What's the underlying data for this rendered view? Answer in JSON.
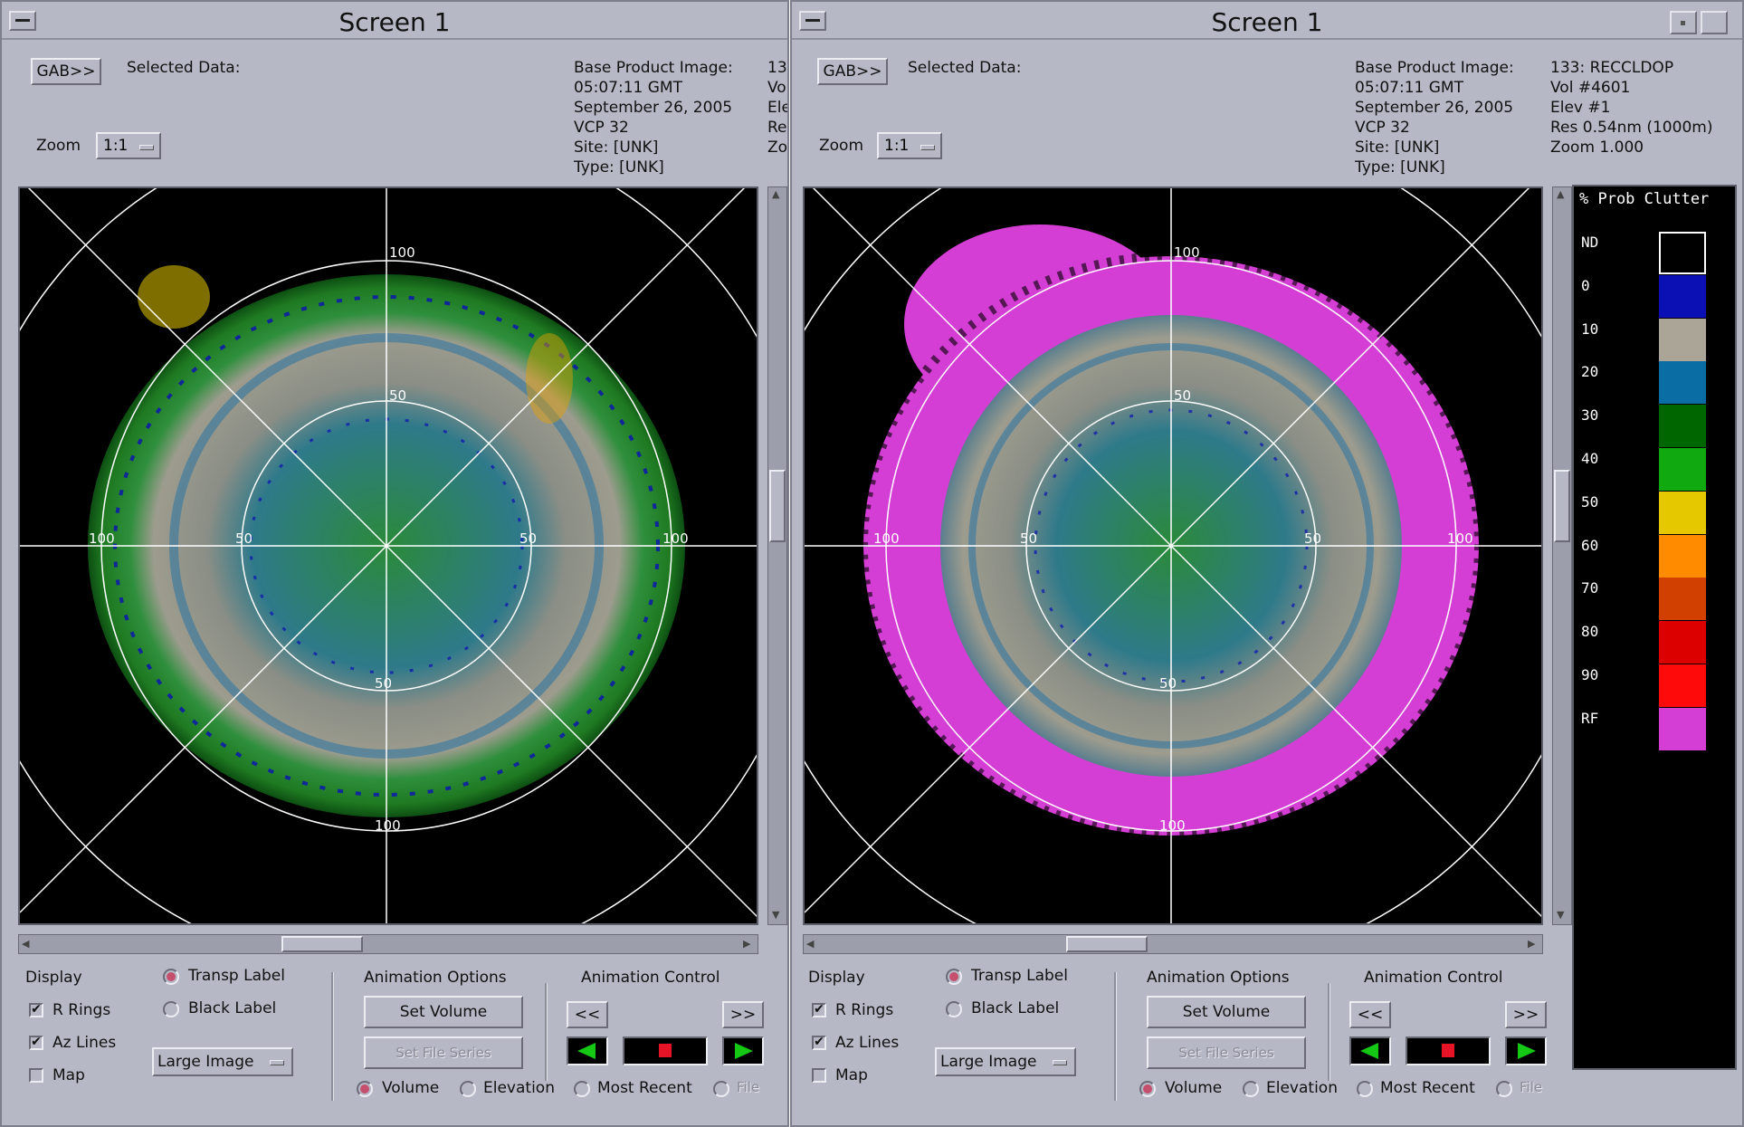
{
  "windows": [
    {
      "title": "Screen 1",
      "gab_label": "GAB>>",
      "selected_data_label": "Selected Data:",
      "product_info": [
        "Base Product Image:",
        "05:07:11 GMT",
        "September 26, 2005",
        "VCP 32",
        "Site: [UNK]",
        "Type: [UNK]"
      ],
      "product_meta": [
        "13",
        "Vo",
        "Ele",
        "Re",
        "Zo"
      ],
      "zoom_label": "Zoom",
      "zoom_value": "1:1",
      "ring_labels": {
        "top_100": "100",
        "top_50": "50",
        "bottom_50": "50",
        "bottom_100": "100",
        "left_100": "100",
        "left_50": "50",
        "right_50": "50",
        "right_100": "100"
      },
      "display": {
        "heading": "Display",
        "r_rings": "R Rings",
        "az_lines": "Az Lines",
        "map": "Map",
        "transp_label": "Transp Label",
        "black_label": "Black Label",
        "large_image": "Large Image"
      },
      "animation_options": {
        "heading": "Animation Options",
        "set_volume": "Set Volume",
        "set_file_series": "Set File Series"
      },
      "animation_control": {
        "heading": "Animation Control",
        "rewind": "<<",
        "forward": ">>"
      },
      "modes": {
        "volume": "Volume",
        "elevation": "Elevation",
        "most_recent": "Most Recent",
        "file": "File"
      }
    },
    {
      "title": "Screen 1",
      "gab_label": "GAB>>",
      "selected_data_label": "Selected Data:",
      "product_info": [
        "Base Product Image:",
        "05:07:11 GMT",
        "September 26, 2005",
        "VCP 32",
        "Site: [UNK]",
        "Type: [UNK]"
      ],
      "product_meta": [
        "133: RECCLDOP",
        "Vol #4601",
        "Elev #1",
        "Res 0.54nm (1000m)",
        "Zoom 1.000"
      ],
      "zoom_label": "Zoom",
      "zoom_value": "1:1",
      "ring_labels": {
        "top_100": "100",
        "top_50": "50",
        "bottom_50": "50",
        "bottom_100": "100",
        "left_100": "100",
        "left_50": "50",
        "right_50": "50",
        "right_100": "100"
      },
      "display": {
        "heading": "Display",
        "r_rings": "R Rings",
        "az_lines": "Az Lines",
        "map": "Map",
        "transp_label": "Transp Label",
        "black_label": "Black Label",
        "large_image": "Large Image"
      },
      "animation_options": {
        "heading": "Animation Options",
        "set_volume": "Set Volume",
        "set_file_series": "Set File Series"
      },
      "animation_control": {
        "heading": "Animation Control",
        "rewind": "<<",
        "forward": ">>"
      },
      "modes": {
        "volume": "Volume",
        "elevation": "Elevation",
        "most_recent": "Most Recent",
        "file": "File"
      }
    }
  ],
  "legend": {
    "title": "% Prob Clutter",
    "entries": [
      {
        "label": "ND",
        "color": "#000000"
      },
      {
        "label": "0",
        "color": "#0a10b4"
      },
      {
        "label": "10",
        "color": "#aaa596"
      },
      {
        "label": "20",
        "color": "#0a6ea5"
      },
      {
        "label": "30",
        "color": "#006600"
      },
      {
        "label": "40",
        "color": "#10aa10"
      },
      {
        "label": "50",
        "color": "#e6c800"
      },
      {
        "label": "60",
        "color": "#ff8c00"
      },
      {
        "label": "70",
        "color": "#d24000"
      },
      {
        "label": "80",
        "color": "#dc0000"
      },
      {
        "label": "90",
        "color": "#ff0a0a"
      },
      {
        "label": "RF",
        "color": "#d43ed4"
      }
    ]
  },
  "colors": {
    "window_bg": "#b6b8c6",
    "radar_bg": "#000000",
    "play_green": "#14c814",
    "stop_red": "#e61426",
    "selected_radio": "#c4506e"
  }
}
